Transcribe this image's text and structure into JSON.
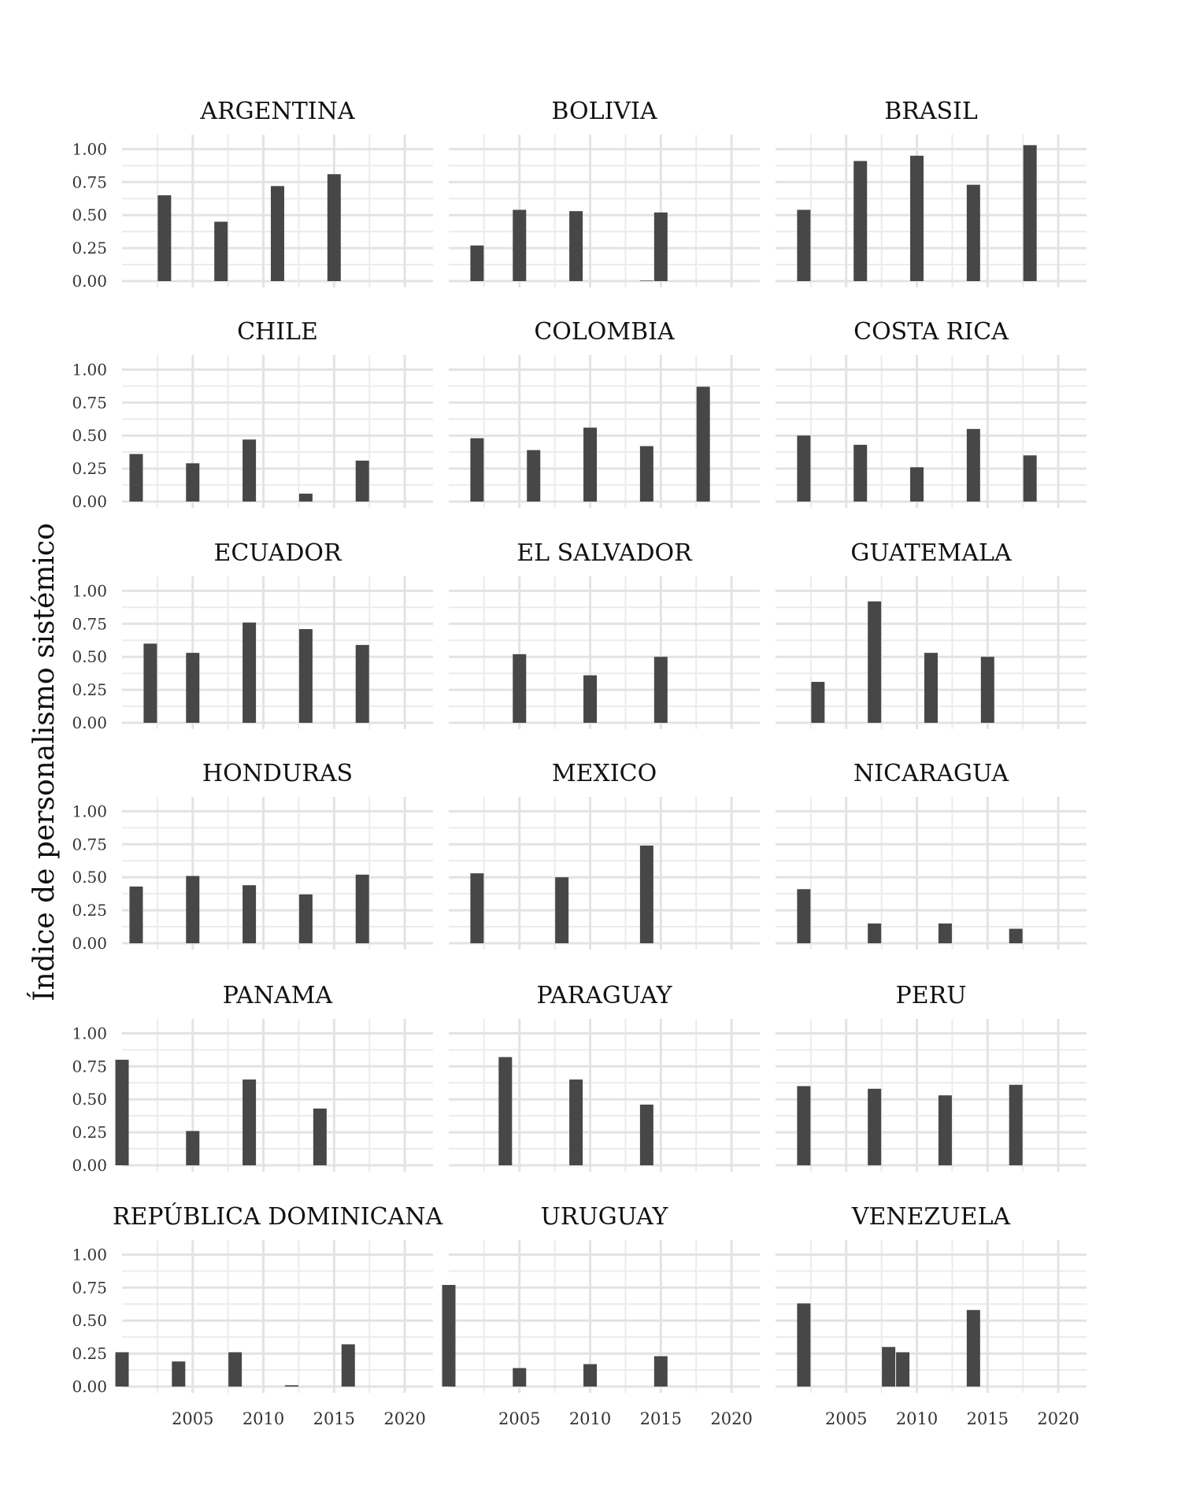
{
  "chart_data": {
    "type": "bar",
    "facet": "small-multiples",
    "ylabel": "Índice de personalismo sistémico",
    "xlabel": "",
    "ylim": [
      0,
      1.05
    ],
    "xlim": [
      2000,
      2022
    ],
    "y_ticks": [
      "0.00",
      "0.25",
      "0.50",
      "0.75",
      "1.00"
    ],
    "y_tick_values": [
      0,
      0.25,
      0.5,
      0.75,
      1.0
    ],
    "x_ticks": [
      "2005",
      "2010",
      "2015",
      "2020"
    ],
    "x_tick_values": [
      2005,
      2010,
      2015,
      2020
    ],
    "bar_color": "#474747",
    "grid": true,
    "panels": [
      {
        "country": "ARGENTINA",
        "bars": [
          {
            "x": 2003,
            "y": 0.65
          },
          {
            "x": 2007,
            "y": 0.45
          },
          {
            "x": 2011,
            "y": 0.72
          },
          {
            "x": 2015,
            "y": 0.81
          }
        ]
      },
      {
        "country": "BOLIVIA",
        "bars": [
          {
            "x": 2002,
            "y": 0.27
          },
          {
            "x": 2005,
            "y": 0.54
          },
          {
            "x": 2009,
            "y": 0.53
          },
          {
            "x": 2014,
            "y": 0.0
          },
          {
            "x": 2015,
            "y": 0.52
          }
        ]
      },
      {
        "country": "BRASIL",
        "bars": [
          {
            "x": 2002,
            "y": 0.54
          },
          {
            "x": 2006,
            "y": 0.91
          },
          {
            "x": 2010,
            "y": 0.95
          },
          {
            "x": 2014,
            "y": 0.73
          },
          {
            "x": 2018,
            "y": 1.03
          }
        ]
      },
      {
        "country": "CHILE",
        "bars": [
          {
            "x": 2001,
            "y": 0.36
          },
          {
            "x": 2005,
            "y": 0.29
          },
          {
            "x": 2009,
            "y": 0.47
          },
          {
            "x": 2013,
            "y": 0.06
          },
          {
            "x": 2017,
            "y": 0.31
          }
        ]
      },
      {
        "country": "COLOMBIA",
        "bars": [
          {
            "x": 2002,
            "y": 0.48
          },
          {
            "x": 2006,
            "y": 0.39
          },
          {
            "x": 2010,
            "y": 0.56
          },
          {
            "x": 2014,
            "y": 0.42
          },
          {
            "x": 2018,
            "y": 0.87
          }
        ]
      },
      {
        "country": "COSTA RICA",
        "bars": [
          {
            "x": 2002,
            "y": 0.5
          },
          {
            "x": 2006,
            "y": 0.43
          },
          {
            "x": 2010,
            "y": 0.26
          },
          {
            "x": 2014,
            "y": 0.55
          },
          {
            "x": 2018,
            "y": 0.35
          }
        ]
      },
      {
        "country": "ECUADOR",
        "bars": [
          {
            "x": 2002,
            "y": 0.6
          },
          {
            "x": 2005,
            "y": 0.53
          },
          {
            "x": 2009,
            "y": 0.76
          },
          {
            "x": 2013,
            "y": 0.71
          },
          {
            "x": 2017,
            "y": 0.59
          }
        ]
      },
      {
        "country": "EL SALVADOR",
        "bars": [
          {
            "x": 2005,
            "y": 0.52
          },
          {
            "x": 2010,
            "y": 0.36
          },
          {
            "x": 2015,
            "y": 0.5
          }
        ]
      },
      {
        "country": "GUATEMALA",
        "bars": [
          {
            "x": 2003,
            "y": 0.31
          },
          {
            "x": 2007,
            "y": 0.92
          },
          {
            "x": 2011,
            "y": 0.53
          },
          {
            "x": 2015,
            "y": 0.5
          }
        ]
      },
      {
        "country": "HONDURAS",
        "bars": [
          {
            "x": 2001,
            "y": 0.43
          },
          {
            "x": 2005,
            "y": 0.51
          },
          {
            "x": 2009,
            "y": 0.44
          },
          {
            "x": 2013,
            "y": 0.37
          },
          {
            "x": 2017,
            "y": 0.52
          }
        ]
      },
      {
        "country": "MEXICO",
        "bars": [
          {
            "x": 2002,
            "y": 0.53
          },
          {
            "x": 2008,
            "y": 0.5
          },
          {
            "x": 2014,
            "y": 0.74
          }
        ]
      },
      {
        "country": "NICARAGUA",
        "bars": [
          {
            "x": 2002,
            "y": 0.41
          },
          {
            "x": 2007,
            "y": 0.15
          },
          {
            "x": 2012,
            "y": 0.15
          },
          {
            "x": 2017,
            "y": 0.11
          }
        ]
      },
      {
        "country": "PANAMA",
        "bars": [
          {
            "x": 2000,
            "y": 0.8
          },
          {
            "x": 2005,
            "y": 0.26
          },
          {
            "x": 2009,
            "y": 0.65
          },
          {
            "x": 2014,
            "y": 0.43
          }
        ]
      },
      {
        "country": "PARAGUAY",
        "bars": [
          {
            "x": 2004,
            "y": 0.82
          },
          {
            "x": 2009,
            "y": 0.65
          },
          {
            "x": 2014,
            "y": 0.46
          }
        ]
      },
      {
        "country": "PERU",
        "bars": [
          {
            "x": 2002,
            "y": 0.6
          },
          {
            "x": 2007,
            "y": 0.58
          },
          {
            "x": 2012,
            "y": 0.53
          },
          {
            "x": 2017,
            "y": 0.61
          }
        ]
      },
      {
        "country": "REPÚBLICA DOMINICANA",
        "bars": [
          {
            "x": 2000,
            "y": 0.26
          },
          {
            "x": 2004,
            "y": 0.19
          },
          {
            "x": 2008,
            "y": 0.26
          },
          {
            "x": 2012,
            "y": 0.01
          },
          {
            "x": 2016,
            "y": 0.32
          }
        ]
      },
      {
        "country": "URUGUAY",
        "bars": [
          {
            "x": 2000,
            "y": 0.77
          },
          {
            "x": 2005,
            "y": 0.14
          },
          {
            "x": 2010,
            "y": 0.17
          },
          {
            "x": 2015,
            "y": 0.23
          }
        ]
      },
      {
        "country": "VENEZUELA",
        "bars": [
          {
            "x": 2002,
            "y": 0.63
          },
          {
            "x": 2008,
            "y": 0.3
          },
          {
            "x": 2009,
            "y": 0.26
          },
          {
            "x": 2014,
            "y": 0.58
          }
        ]
      }
    ]
  }
}
